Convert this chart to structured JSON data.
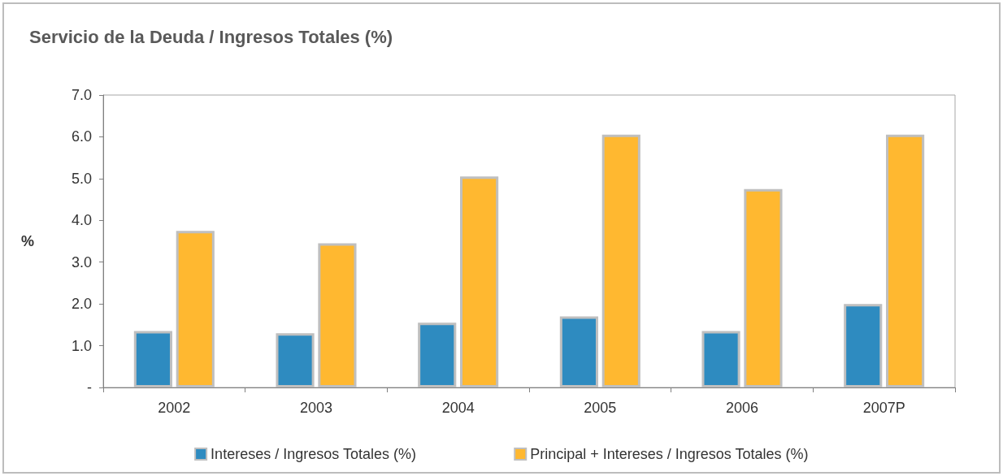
{
  "chart_data": {
    "type": "bar",
    "title": "Servicio de la Deuda / Ingresos Totales (%)",
    "ylabel": "%",
    "categories": [
      "2002",
      "2003",
      "2004",
      "2005",
      "2006",
      "2007P"
    ],
    "series": [
      {
        "name": "Intereses / Ingresos Totales (%)",
        "color": "#2e8bc0",
        "values": [
          1.35,
          1.3,
          1.55,
          1.7,
          1.35,
          2.0
        ]
      },
      {
        "name": "Principal + Intereses / Ingresos Totales (%)",
        "color": "#ffb830",
        "values": [
          3.75,
          3.45,
          5.05,
          6.05,
          4.75,
          6.05
        ]
      }
    ],
    "ylim": [
      0,
      7
    ],
    "yticks": [
      {
        "value": 0,
        "label": "-"
      },
      {
        "value": 1,
        "label": "1.0"
      },
      {
        "value": 2,
        "label": "2.0"
      },
      {
        "value": 3,
        "label": "3.0"
      },
      {
        "value": 4,
        "label": "4.0"
      },
      {
        "value": 5,
        "label": "5.0"
      },
      {
        "value": 6,
        "label": "6.0"
      },
      {
        "value": 7,
        "label": "7.0"
      }
    ],
    "grid": false,
    "legend": "bottom"
  }
}
